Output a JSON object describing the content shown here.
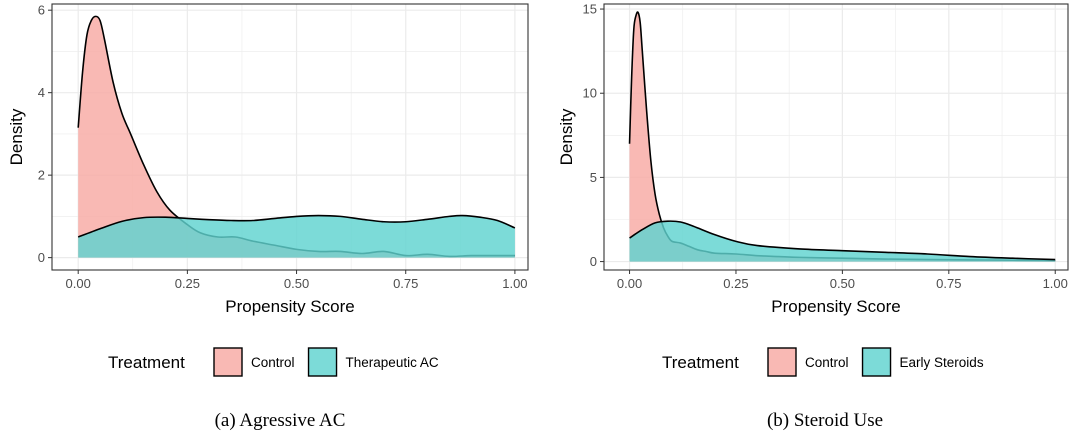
{
  "colors": {
    "control": "#f8aaa4",
    "treated": "#5fd3d0",
    "grid": "#ebebeb",
    "panel_border": "#333333",
    "curve": "#000000"
  },
  "chart_data": [
    {
      "type": "area",
      "caption": "(a) Agressive AC",
      "xlabel": "Propensity Score",
      "ylabel": "Density",
      "xlim": [
        -0.06,
        1.03
      ],
      "ylim": [
        -0.3,
        6.15
      ],
      "x_ticks": [
        0,
        0.25,
        0.5,
        0.75,
        1.0
      ],
      "x_tick_labels": [
        "0.00",
        "0.25",
        "0.50",
        "0.75",
        "1.00"
      ],
      "y_ticks": [
        0,
        2,
        4,
        6
      ],
      "y_tick_labels": [
        "0",
        "2",
        "4",
        "6"
      ],
      "grid": true,
      "legend": {
        "position": "bottom",
        "title": "Treatment"
      },
      "series": [
        {
          "name": "Control",
          "x": [
            0,
            0.01,
            0.02,
            0.03,
            0.04,
            0.05,
            0.06,
            0.08,
            0.1,
            0.12,
            0.15,
            0.18,
            0.21,
            0.25,
            0.28,
            0.32,
            0.36,
            0.4,
            0.45,
            0.5,
            0.55,
            0.6,
            0.65,
            0.7,
            0.75,
            0.8,
            0.85,
            0.9,
            0.95,
            1.0
          ],
          "y": [
            3.15,
            4.5,
            5.4,
            5.75,
            5.85,
            5.75,
            5.3,
            4.25,
            3.5,
            3.0,
            2.25,
            1.6,
            1.15,
            0.8,
            0.6,
            0.5,
            0.5,
            0.4,
            0.3,
            0.2,
            0.15,
            0.15,
            0.1,
            0.15,
            0.05,
            0.08,
            0.03,
            0.05,
            0.05,
            0.05
          ]
        },
        {
          "name": "Therapeutic AC",
          "x": [
            0,
            0.05,
            0.1,
            0.15,
            0.2,
            0.25,
            0.3,
            0.35,
            0.4,
            0.45,
            0.5,
            0.55,
            0.6,
            0.65,
            0.7,
            0.75,
            0.8,
            0.85,
            0.88,
            0.92,
            0.96,
            1.0
          ],
          "y": [
            0.5,
            0.7,
            0.88,
            0.97,
            0.98,
            0.95,
            0.92,
            0.9,
            0.9,
            0.95,
            1.0,
            1.02,
            1.0,
            0.93,
            0.87,
            0.87,
            0.93,
            1.0,
            1.02,
            0.98,
            0.9,
            0.72
          ]
        }
      ]
    },
    {
      "type": "area",
      "caption": "(b) Steroid Use",
      "xlabel": "Propensity Score",
      "ylabel": "Density",
      "xlim": [
        -0.06,
        1.03
      ],
      "ylim": [
        -0.5,
        15.3
      ],
      "x_ticks": [
        0,
        0.25,
        0.5,
        0.75,
        1.0
      ],
      "x_tick_labels": [
        "0.00",
        "0.25",
        "0.50",
        "0.75",
        "1.00"
      ],
      "y_ticks": [
        0,
        5,
        10,
        15
      ],
      "y_tick_labels": [
        "0",
        "5",
        "10",
        "15"
      ],
      "grid": true,
      "legend": {
        "position": "bottom",
        "title": "Treatment"
      },
      "series": [
        {
          "name": "Control",
          "x": [
            0,
            0.005,
            0.01,
            0.015,
            0.02,
            0.025,
            0.03,
            0.04,
            0.05,
            0.06,
            0.07,
            0.08,
            0.09,
            0.1,
            0.12,
            0.14,
            0.16,
            0.18,
            0.2,
            0.25,
            0.3,
            0.35,
            0.4,
            0.5,
            0.6,
            0.7,
            0.8,
            0.9,
            1.0
          ],
          "y": [
            7.0,
            11.0,
            13.8,
            14.6,
            14.8,
            14.2,
            12.5,
            9.0,
            6.0,
            4.0,
            2.8,
            2.0,
            1.5,
            1.2,
            1.1,
            0.9,
            0.7,
            0.6,
            0.5,
            0.45,
            0.35,
            0.3,
            0.25,
            0.2,
            0.15,
            0.12,
            0.1,
            0.08,
            0.05
          ]
        },
        {
          "name": "Early Steroids",
          "x": [
            0,
            0.03,
            0.06,
            0.09,
            0.12,
            0.15,
            0.2,
            0.25,
            0.3,
            0.4,
            0.5,
            0.6,
            0.7,
            0.8,
            0.9,
            1.0
          ],
          "y": [
            1.4,
            1.9,
            2.3,
            2.4,
            2.35,
            2.1,
            1.6,
            1.2,
            0.95,
            0.75,
            0.65,
            0.55,
            0.45,
            0.3,
            0.2,
            0.12
          ]
        }
      ]
    }
  ]
}
